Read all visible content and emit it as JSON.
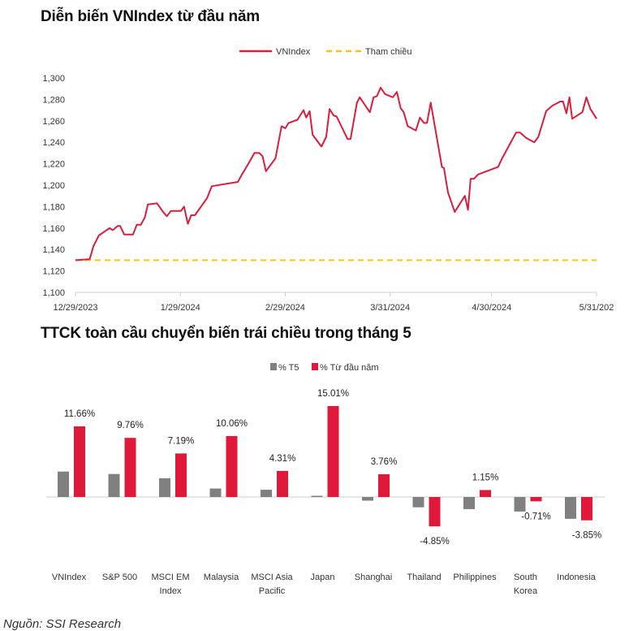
{
  "source": "Nguồn: SSI Research",
  "chart_data": [
    {
      "type": "line",
      "title": "Diễn biến VNIndex từ đầu năm",
      "xlabel": "",
      "ylabel": "",
      "x_unit": "days since 12/29/2023",
      "xlim": [
        0,
        154
      ],
      "ylim": [
        1100,
        1300
      ],
      "yticks": [
        1100,
        1120,
        1140,
        1160,
        1180,
        1200,
        1220,
        1240,
        1260,
        1280,
        1300
      ],
      "ytick_labels": [
        "1,100",
        "1,120",
        "1,140",
        "1,160",
        "1,180",
        "1,200",
        "1,220",
        "1,240",
        "1,260",
        "1,280",
        "1,300"
      ],
      "xticks": [
        0,
        31,
        62,
        93,
        123,
        154
      ],
      "xtick_labels": [
        "12/29/2023",
        "1/29/2024",
        "2/29/2024",
        "3/31/2024",
        "4/30/2024",
        "5/31/202"
      ],
      "legend": [
        "VNIndex",
        "Tham chiều"
      ],
      "legend_position": "top-center",
      "colors": {
        "vnindex": "#d81e3c",
        "reference": "#f5c518"
      },
      "reference_value": 1130,
      "series": [
        {
          "name": "VNIndex",
          "points": [
            [
              0,
              1130
            ],
            [
              4.2,
              1131
            ],
            [
              5.3,
              1143
            ],
            [
              6.9,
              1153
            ],
            [
              8.7,
              1157
            ],
            [
              10.1,
              1160
            ],
            [
              11,
              1158
            ],
            [
              12.5,
              1162
            ],
            [
              13.2,
              1162
            ],
            [
              14.4,
              1154
            ],
            [
              17,
              1154
            ],
            [
              18.1,
              1163
            ],
            [
              19.3,
              1163
            ],
            [
              20.5,
              1170
            ],
            [
              21.4,
              1182
            ],
            [
              24.1,
              1183
            ],
            [
              25.9,
              1175
            ],
            [
              27,
              1171
            ],
            [
              28.2,
              1176
            ],
            [
              31.2,
              1176
            ],
            [
              32.1,
              1180
            ],
            [
              33.2,
              1164
            ],
            [
              34.2,
              1172
            ],
            [
              35.3,
              1172
            ],
            [
              37.1,
              1180
            ],
            [
              38.9,
              1188
            ],
            [
              40.3,
              1199
            ],
            [
              48,
              1203
            ],
            [
              49.2,
              1210
            ],
            [
              51.1,
              1220
            ],
            [
              52.9,
              1230
            ],
            [
              54.3,
              1230
            ],
            [
              55.3,
              1227
            ],
            [
              56.3,
              1213
            ],
            [
              59.1,
              1225
            ],
            [
              60.9,
              1255
            ],
            [
              62,
              1253
            ],
            [
              63,
              1258
            ],
            [
              65.6,
              1261
            ],
            [
              67.4,
              1270
            ],
            [
              68.2,
              1263
            ],
            [
              69.2,
              1269
            ],
            [
              70.1,
              1247
            ],
            [
              72.7,
              1236
            ],
            [
              74.1,
              1245
            ],
            [
              75.1,
              1271
            ],
            [
              76.3,
              1265
            ],
            [
              77.2,
              1264
            ],
            [
              80.4,
              1243
            ],
            [
              81.3,
              1243
            ],
            [
              83.2,
              1277
            ],
            [
              84,
              1282
            ],
            [
              87,
              1268
            ],
            [
              88.1,
              1282
            ],
            [
              89.1,
              1283
            ],
            [
              90.2,
              1291
            ],
            [
              91.5,
              1285
            ],
            [
              93.8,
              1282
            ],
            [
              95,
              1287
            ],
            [
              96.1,
              1272
            ],
            [
              97,
              1268
            ],
            [
              98.2,
              1255
            ],
            [
              100.6,
              1251
            ],
            [
              101.8,
              1263
            ],
            [
              103,
              1258
            ],
            [
              103.9,
              1258
            ],
            [
              105,
              1277
            ],
            [
              108.3,
              1217
            ],
            [
              108.9,
              1216
            ],
            [
              110.1,
              1193
            ],
            [
              112.1,
              1175
            ],
            [
              115.1,
              1190
            ],
            [
              116,
              1177
            ],
            [
              116.8,
              1206
            ],
            [
              117.8,
              1206
            ],
            [
              119,
              1210
            ],
            [
              124.9,
              1217
            ],
            [
              126.1,
              1225
            ],
            [
              130.2,
              1249
            ],
            [
              131.4,
              1249
            ],
            [
              133.2,
              1244
            ],
            [
              135.6,
              1240
            ],
            [
              136.8,
              1245
            ],
            [
              139.1,
              1269
            ],
            [
              140.9,
              1274
            ],
            [
              143.3,
              1278
            ],
            [
              144.1,
              1278
            ],
            [
              145.1,
              1267
            ],
            [
              146,
              1282
            ],
            [
              146.8,
              1262
            ],
            [
              149.8,
              1268
            ],
            [
              151,
              1282
            ],
            [
              152.2,
              1271
            ],
            [
              154,
              1262
            ]
          ]
        },
        {
          "name": "Tham chiều",
          "constant": 1130
        }
      ]
    },
    {
      "type": "bar",
      "title": "TTCK toàn cầu chuyển biến trái chiều trong tháng 5",
      "categories": [
        [
          "VNIndex"
        ],
        [
          "S&P 500"
        ],
        [
          "MSCI EM",
          "Index"
        ],
        [
          "Malaysia"
        ],
        [
          "MSCI Asia",
          "Pacific"
        ],
        [
          "Japan"
        ],
        [
          "Shanghai"
        ],
        [
          "Thailand"
        ],
        [
          "Philippines"
        ],
        [
          "South",
          "Korea"
        ],
        [
          "Indonesia"
        ]
      ],
      "legend": [
        "% T5",
        "% Từ đầu năm"
      ],
      "legend_position": "top-center",
      "colors": {
        "t5": "#808080",
        "ytd": "#e0193a"
      },
      "ylim": [
        -6,
        16
      ],
      "series": [
        {
          "name": "% T5",
          "values": [
            4.2,
            3.8,
            3.1,
            1.4,
            1.2,
            0.2,
            -0.6,
            -1.7,
            -2.0,
            -2.4,
            -3.6
          ]
        },
        {
          "name": "% Từ đầu năm",
          "values": [
            11.66,
            9.76,
            7.19,
            10.06,
            4.31,
            15.01,
            3.76,
            -4.85,
            1.15,
            -0.71,
            -3.85
          ],
          "labels": [
            "11.66%",
            "9.76%",
            "7.19%",
            "10.06%",
            "4.31%",
            "15.01%",
            "3.76%",
            "-4.85%",
            "1.15%",
            "-0.71%",
            "-3.85%"
          ]
        }
      ]
    }
  ]
}
